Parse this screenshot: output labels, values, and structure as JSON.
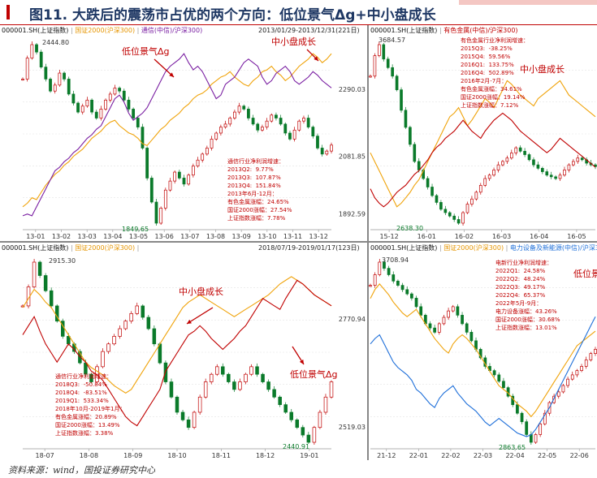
{
  "title": "图11. 大跌后的震荡市占优的两个方向：低位景气Δg+中小盘成长",
  "source": "资料来源：wind，国投证券研究中心",
  "colors": {
    "red": "#c00000",
    "orange": "#f0a30a",
    "purple": "#7a1fa2",
    "blue": "#1e6fd9",
    "green": "#0a7a2a"
  },
  "chart_data": [
    {
      "id": "tl",
      "type": "line",
      "legend": [
        "000001.SH(上证指数)",
        "国证2000(沪深300)",
        "通信(中信)/沪深300)"
      ],
      "date_range": "2013/01/29-2013/12/31(221日)",
      "x_ticks": [
        "13-01",
        "13-02",
        "13-03",
        "13-04",
        "13-05",
        "13-06",
        "13-07",
        "13-08",
        "13-09",
        "13-10",
        "13-11",
        "13-12"
      ],
      "y_ticks": [
        "2290.03",
        "2081.85",
        "1892.59"
      ],
      "high_label": "2444.80",
      "low_label": "1849.65",
      "annotations": [
        "低位景气Δg",
        "中小盘成长"
      ],
      "note": [
        "通信行业净利润增速：",
        "2013Q2:  9.77%",
        "2013Q3:  107.87%",
        "2013Q4:  151.84%",
        "",
        "2013年6月-12月：",
        "有色金属涨幅：24.65%",
        "国证2000涨幅：27.54%",
        "上证指数涨幅：7.78%"
      ],
      "series": [
        {
          "role": "index",
          "values": [
            2330,
            2400,
            2444.8,
            2420,
            2370,
            2330,
            2290,
            2310,
            2350,
            2330,
            2280,
            2250,
            2220,
            2240,
            2260,
            2220,
            2200,
            2230,
            2260,
            2280,
            2300,
            2290,
            2260,
            2230,
            2200,
            2170,
            2100,
            2000,
            1920,
            1849.65,
            1900,
            1960,
            1990,
            2020,
            2000,
            1980,
            2010,
            2040,
            2060,
            2080,
            2100,
            2130,
            2150,
            2170,
            2180,
            2200,
            2220,
            2240,
            2230,
            2200,
            2180,
            2160,
            2170,
            2190,
            2210,
            2200,
            2180,
            2150,
            2130,
            2160,
            2190,
            2200,
            2170,
            2140,
            2100,
            2080,
            2090,
            2110
          ]
        },
        {
          "role": "smallcap",
          "values": [
            0.1,
            0.12,
            0.15,
            0.14,
            0.18,
            0.22,
            0.25,
            0.28,
            0.3,
            0.33,
            0.35,
            0.38,
            0.4,
            0.42,
            0.45,
            0.48,
            0.5,
            0.52,
            0.55,
            0.57,
            0.58,
            0.55,
            0.53,
            0.51,
            0.5,
            0.48,
            0.45,
            0.44,
            0.47,
            0.5,
            0.53,
            0.55,
            0.58,
            0.6,
            0.62,
            0.65,
            0.67,
            0.7,
            0.72,
            0.73,
            0.75,
            0.78,
            0.8,
            0.82,
            0.83,
            0.85,
            0.82,
            0.8,
            0.78,
            0.77,
            0.8,
            0.82,
            0.85,
            0.86,
            0.88,
            0.85,
            0.83,
            0.8,
            0.82,
            0.85,
            0.88,
            0.9,
            0.92,
            0.95,
            0.93,
            0.9,
            0.92,
            0.95
          ]
        },
        {
          "role": "telecom",
          "values": [
            0.05,
            0.06,
            0.05,
            0.1,
            0.15,
            0.2,
            0.25,
            0.3,
            0.32,
            0.35,
            0.37,
            0.4,
            0.42,
            0.45,
            0.48,
            0.5,
            0.53,
            0.55,
            0.6,
            0.65,
            0.7,
            0.72,
            0.68,
            0.62,
            0.58,
            0.6,
            0.62,
            0.65,
            0.7,
            0.75,
            0.8,
            0.85,
            0.88,
            0.9,
            0.92,
            0.95,
            0.9,
            0.86,
            0.88,
            0.85,
            0.8,
            0.75,
            0.7,
            0.72,
            0.78,
            0.8,
            0.82,
            0.86,
            0.9,
            0.92,
            0.9,
            0.88,
            0.82,
            0.78,
            0.8,
            0.84,
            0.86,
            0.88,
            0.85,
            0.8,
            0.78,
            0.8,
            0.82,
            0.85,
            0.83,
            0.8,
            0.78,
            0.76
          ]
        }
      ]
    },
    {
      "id": "tr",
      "type": "line",
      "legend": [
        "000001.SH(上证指数)",
        "有色金属(中信)/沪深300)"
      ],
      "y_ticks": [],
      "x_ticks": [
        "15-12",
        "16-01",
        "16-02",
        "16-03",
        "16-04",
        "16-05"
      ],
      "high_label": "3684.57",
      "low_label": "2638.30",
      "annotations": [
        "中小盘成长"
      ],
      "note": [
        "有色金属行业净利润增速：",
        "2015Q3:  -38.25%",
        "2015Q4:  59.56%",
        "2016Q1:  133.75%",
        "2016Q4:  502.89%",
        "",
        "2016年2月-7月：",
        "有色金属涨幅：34.61%",
        "国证2000涨幅：19.14%",
        "上证指数涨幅：7.12%"
      ],
      "series": [
        {
          "role": "index",
          "values": [
            3500,
            3620,
            3684.57,
            3600,
            3550,
            3500,
            3420,
            3300,
            3200,
            3100,
            3000,
            2950,
            2900,
            2850,
            2800,
            2760,
            2720,
            2700,
            2680,
            2660,
            2638.3,
            2700,
            2750,
            2780,
            2820,
            2860,
            2900,
            2920,
            2950,
            2980,
            3000,
            3020,
            3050,
            3080,
            3060,
            3040,
            3010,
            2980,
            2960,
            2940,
            2920,
            2910,
            2900,
            2920,
            2950,
            2980,
            3000,
            3020,
            3010,
            2990,
            2980,
            2970
          ]
        },
        {
          "role": "smallcap",
          "values": [
            0.4,
            0.35,
            0.3,
            0.25,
            0.2,
            0.15,
            0.1,
            0.12,
            0.15,
            0.18,
            0.22,
            0.25,
            0.3,
            0.35,
            0.4,
            0.45,
            0.5,
            0.55,
            0.6,
            0.62,
            0.65,
            0.6,
            0.55,
            0.58,
            0.62,
            0.66,
            0.7,
            0.68,
            0.65,
            0.7,
            0.75,
            0.8,
            0.78,
            0.75,
            0.72,
            0.7,
            0.68,
            0.66,
            0.7,
            0.72,
            0.74,
            0.76,
            0.78,
            0.8,
            0.76,
            0.72,
            0.7,
            0.68,
            0.66,
            0.64,
            0.62,
            0.6
          ]
        },
        {
          "role": "metal",
          "values": [
            0.2,
            0.15,
            0.12,
            0.1,
            0.12,
            0.15,
            0.18,
            0.2,
            0.22,
            0.25,
            0.28,
            0.3,
            0.33,
            0.36,
            0.4,
            0.43,
            0.45,
            0.48,
            0.5,
            0.52,
            0.55,
            0.58,
            0.55,
            0.52,
            0.5,
            0.48,
            0.52,
            0.55,
            0.58,
            0.6,
            0.62,
            0.6,
            0.58,
            0.55,
            0.52,
            0.5,
            0.48,
            0.46,
            0.44,
            0.42,
            0.4,
            0.42,
            0.45,
            0.48,
            0.46,
            0.44,
            0.42,
            0.4,
            0.38,
            0.36,
            0.34,
            0.32
          ]
        }
      ]
    },
    {
      "id": "bl",
      "type": "line",
      "legend": [
        "000001.SH(上证指数)",
        "国证2000(沪深300)"
      ],
      "date_range": "2018/07/19-2019/01/17(123日)",
      "x_ticks": [
        "18-07",
        "18-08",
        "18-09",
        "18-10",
        "18-11",
        "18-12",
        "19-01"
      ],
      "y_ticks": [
        "2770.94",
        "2519.03"
      ],
      "high_label": "2915.30",
      "low_label": "2440.91",
      "annotations": [
        "中小盘成长",
        "低位景气Δg"
      ],
      "note": [
        "通信行业净利润增速：",
        "2018Q3:  -50.84%",
        "2018Q4:  -83.51%",
        "2019Q1:  533.34%",
        "",
        "2018年10月-2019年1月：",
        "有色金属涨幅：20.89%",
        "国证2000涨幅：13.49%",
        "上证指数涨幅：3.38%"
      ],
      "series": [
        {
          "role": "index",
          "values": [
            2800,
            2850,
            2915.3,
            2880,
            2840,
            2800,
            2760,
            2720,
            2700,
            2680,
            2650,
            2620,
            2600,
            2640,
            2680,
            2700,
            2720,
            2740,
            2760,
            2780,
            2800,
            2770,
            2740,
            2700,
            2650,
            2600,
            2560,
            2520,
            2500,
            2480,
            2520,
            2560,
            2600,
            2620,
            2640,
            2620,
            2600,
            2580,
            2600,
            2620,
            2640,
            2620,
            2600,
            2580,
            2560,
            2540,
            2520,
            2500,
            2480,
            2460,
            2440.91,
            2480,
            2520,
            2560,
            2600
          ]
        },
        {
          "role": "smallcap",
          "values": [
            0.75,
            0.8,
            0.85,
            0.82,
            0.78,
            0.75,
            0.7,
            0.65,
            0.6,
            0.55,
            0.5,
            0.45,
            0.42,
            0.4,
            0.38,
            0.35,
            0.32,
            0.3,
            0.28,
            0.3,
            0.35,
            0.4,
            0.45,
            0.5,
            0.55,
            0.6,
            0.65,
            0.7,
            0.75,
            0.78,
            0.8,
            0.82,
            0.8,
            0.78,
            0.76,
            0.74,
            0.72,
            0.7,
            0.72,
            0.74,
            0.76,
            0.78,
            0.8,
            0.82,
            0.85,
            0.88,
            0.9,
            0.92,
            0.9,
            0.88,
            0.85,
            0.82,
            0.8,
            0.78,
            0.76
          ]
        },
        {
          "role": "telecom",
          "values": [
            0.6,
            0.65,
            0.7,
            0.62,
            0.55,
            0.5,
            0.45,
            0.5,
            0.55,
            0.52,
            0.48,
            0.45,
            0.4,
            0.38,
            0.35,
            0.3,
            0.25,
            0.2,
            0.15,
            0.12,
            0.1,
            0.15,
            0.2,
            0.25,
            0.3,
            0.4,
            0.45,
            0.5,
            0.55,
            0.6,
            0.62,
            0.65,
            0.62,
            0.58,
            0.55,
            0.52,
            0.55,
            0.58,
            0.62,
            0.65,
            0.7,
            0.75,
            0.8,
            0.78,
            0.76,
            0.74,
            0.8,
            0.85,
            0.9,
            0.88,
            0.85,
            0.82,
            0.8,
            0.78,
            0.76
          ]
        }
      ]
    },
    {
      "id": "br",
      "type": "line",
      "legend": [
        "000001.SH(上证指数)",
        "国证2000(沪深300)",
        "电力设备及新能源(中信)/沪深300)"
      ],
      "x_ticks": [
        "21-12",
        "22-01",
        "22-02",
        "22-03",
        "22-04",
        "22-05",
        "22-06"
      ],
      "y_ticks": [],
      "high_label": "3708.94",
      "low_label": "2863.65",
      "annotations": [
        "低位景"
      ],
      "note": [
        "电新行业净利润增速：",
        "2022Q1:  24.58%",
        "2022Q2:  48.24%",
        "2022Q3:  49.17%",
        "2022Q4:  65.37%",
        "",
        "2022年5月-9月：",
        "电力设备涨幅：43.26%",
        "国证2000涨幅：30.68%",
        "上证指数涨幅：13.01%"
      ],
      "series": [
        {
          "role": "index",
          "values": [
            3600,
            3650,
            3708.94,
            3680,
            3650,
            3620,
            3600,
            3580,
            3560,
            3540,
            3500,
            3460,
            3420,
            3400,
            3380,
            3420,
            3450,
            3480,
            3500,
            3460,
            3420,
            3380,
            3340,
            3300,
            3260,
            3220,
            3200,
            3180,
            3150,
            3120,
            3080,
            3040,
            3000,
            2960,
            2900,
            2863.65,
            2900,
            2950,
            3000,
            3050,
            3080,
            3100,
            3130,
            3160,
            3180,
            3200,
            3220,
            3250,
            3280,
            3300
          ]
        },
        {
          "role": "smallcap",
          "values": [
            0.8,
            0.85,
            0.88,
            0.85,
            0.82,
            0.78,
            0.75,
            0.72,
            0.7,
            0.72,
            0.74,
            0.7,
            0.66,
            0.62,
            0.58,
            0.55,
            0.52,
            0.5,
            0.55,
            0.58,
            0.6,
            0.58,
            0.55,
            0.52,
            0.48,
            0.44,
            0.4,
            0.36,
            0.32,
            0.3,
            0.28,
            0.25,
            0.22,
            0.2,
            0.18,
            0.15,
            0.18,
            0.22,
            0.26,
            0.3,
            0.34,
            0.38,
            0.42,
            0.46,
            0.5,
            0.54,
            0.56,
            0.58,
            0.6,
            0.62
          ]
        },
        {
          "role": "power",
          "values": [
            0.55,
            0.58,
            0.6,
            0.55,
            0.5,
            0.45,
            0.42,
            0.4,
            0.38,
            0.35,
            0.3,
            0.28,
            0.25,
            0.22,
            0.2,
            0.25,
            0.28,
            0.3,
            0.32,
            0.28,
            0.25,
            0.22,
            0.2,
            0.18,
            0.15,
            0.12,
            0.1,
            0.12,
            0.14,
            0.12,
            0.1,
            0.08,
            0.06,
            0.05,
            0.04,
            0.05,
            0.08,
            0.12,
            0.16,
            0.2,
            0.25,
            0.3,
            0.35,
            0.4,
            0.45,
            0.5,
            0.55,
            0.6,
            0.65,
            0.7
          ]
        }
      ]
    }
  ]
}
